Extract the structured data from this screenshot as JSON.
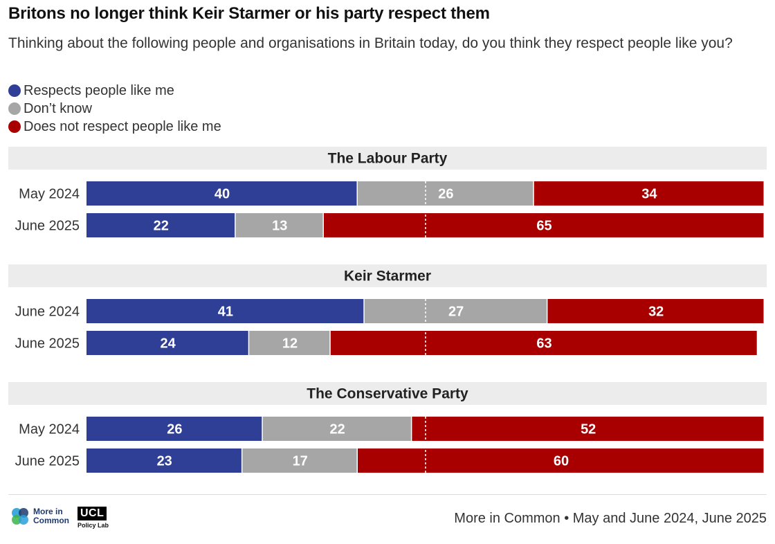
{
  "header": {
    "title": "Britons no longer think Keir Starmer or his party respect them",
    "subtitle": "Thinking about the following people and organisations in Britain today, do you think they respect people like you?"
  },
  "legend": [
    {
      "label": "Respects people like me",
      "color": "#2e3f95"
    },
    {
      "label": "Don’t know",
      "color": "#a6a6a6"
    },
    {
      "label": "Does not respect people like me",
      "color": "#a80000"
    }
  ],
  "chart_data": {
    "type": "bar",
    "orientation": "horizontal-stacked-100",
    "series": [
      {
        "name": "Respects people like me",
        "color": "#2e3f95"
      },
      {
        "name": "Don’t know",
        "color": "#a6a6a6"
      },
      {
        "name": "Does not respect people like me",
        "color": "#a80000"
      }
    ],
    "groups": [
      {
        "title": "The Labour Party",
        "rows": [
          {
            "label": "May 2024",
            "values": [
              40,
              26,
              34
            ]
          },
          {
            "label": "June 2025",
            "values": [
              22,
              13,
              65
            ]
          }
        ]
      },
      {
        "title": "Keir Starmer",
        "rows": [
          {
            "label": "June 2024",
            "values": [
              41,
              27,
              32
            ]
          },
          {
            "label": "June 2025",
            "values": [
              24,
              12,
              63
            ]
          }
        ]
      },
      {
        "title": "The Conservative Party",
        "rows": [
          {
            "label": "May 2024",
            "values": [
              26,
              22,
              52
            ]
          },
          {
            "label": "June 2025",
            "values": [
              23,
              17,
              60
            ]
          }
        ]
      }
    ],
    "xlim": [
      0,
      100
    ],
    "reference_line": 50
  },
  "footer": {
    "source": "More in Common • May and June 2024, June 2025",
    "logo_mic_text": "More in Common",
    "logo_ucl_text": "UCL",
    "logo_ucl_sub": "Policy Lab"
  }
}
